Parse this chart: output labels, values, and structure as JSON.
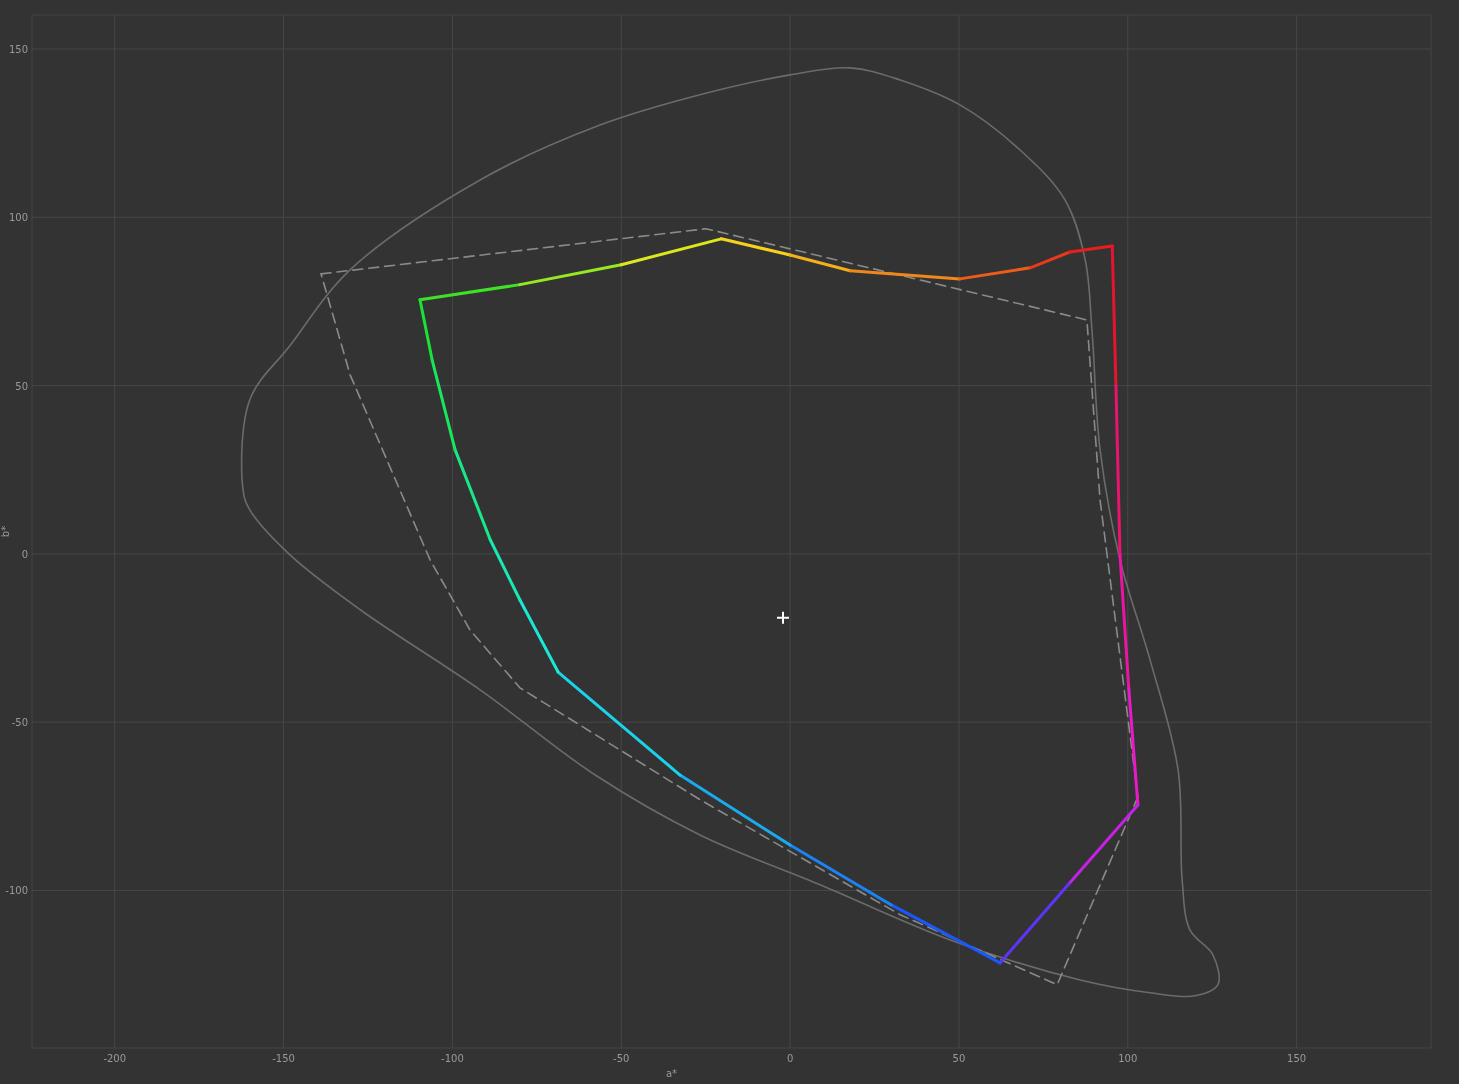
{
  "chart_data": {
    "type": "line",
    "xlabel": "a*",
    "ylabel": "b*",
    "xlim": [
      -224.5,
      189.8
    ],
    "ylim": [
      -146.8,
      160.1
    ],
    "xticks": [
      -200,
      -150,
      -100,
      -50,
      0,
      50,
      100,
      150
    ],
    "yticks": [
      -100,
      -50,
      0,
      50,
      100,
      150
    ],
    "grid": true,
    "series": [
      {
        "color": "#8a8a8a",
        "line_style": "dashed",
        "x": [
          -138.9,
          -24.9,
          87.9,
          91.8,
          103
        ],
        "values": [
          83.2,
          96.6,
          69.5,
          16,
          -72.2
        ]
      },
      {
        "color": "#8a8a8a",
        "line_style": "dashed",
        "x": [
          103,
          79.1,
          32.6,
          -26.7,
          -80,
          -94.8,
          -106.6,
          -130.3,
          -138.9
        ],
        "values": [
          -72.2,
          -128,
          -107.2,
          -73,
          -39.8,
          -22.6,
          -1.8,
          53.2,
          83.2
        ]
      },
      {
        "color": "#3fe226",
        "x": [
          -109.6,
          -80
        ],
        "values": [
          75.5,
          80
        ]
      },
      {
        "color": "#96e820",
        "x": [
          -80,
          -50
        ],
        "values": [
          80,
          85.9
        ]
      },
      {
        "color": "#dce81d",
        "x": [
          -50,
          -20.4
        ],
        "values": [
          85.9,
          93.6
        ]
      },
      {
        "color": "#f5d31c",
        "x": [
          -20.4,
          0
        ],
        "values": [
          93.6,
          88.8
        ]
      },
      {
        "color": "#f3b01b",
        "x": [
          0,
          17.8
        ],
        "values": [
          88.8,
          84.1
        ]
      },
      {
        "color": "#ef881a",
        "x": [
          17.8,
          50.3
        ],
        "values": [
          84.1,
          81.7
        ]
      },
      {
        "color": "#ec5d1a",
        "x": [
          50.3,
          71.1
        ],
        "values": [
          81.7,
          85
        ]
      },
      {
        "color": "#e9381b",
        "x": [
          71.1,
          82.9
        ],
        "values": [
          85,
          89.7
        ]
      },
      {
        "color": "#e81e1d",
        "x": [
          82.9,
          95.4
        ],
        "values": [
          89.7,
          91.5
        ]
      },
      {
        "color": "#e8142f",
        "x": [
          95.4,
          96.5
        ],
        "values": [
          91.5,
          50
        ]
      },
      {
        "color": "#e8146e",
        "x": [
          96.5,
          97.7
        ],
        "values": [
          50,
          -0.3
        ]
      },
      {
        "color": "#e816a2",
        "x": [
          97.7,
          100.3
        ],
        "values": [
          -0.3,
          -40
        ]
      },
      {
        "color": "#e819c8",
        "x": [
          100.3,
          103
        ],
        "values": [
          -40,
          -74.6
        ]
      },
      {
        "color": "#c421e4",
        "x": [
          103,
          82.6
        ],
        "values": [
          -74.6,
          -98
        ]
      },
      {
        "color": "#5e34f8",
        "x": [
          82.6,
          62.2
        ],
        "values": [
          -98,
          -121.5
        ]
      },
      {
        "color": "#1a58fb",
        "x": [
          62.2,
          30
        ],
        "values": [
          -121.5,
          -104.3
        ]
      },
      {
        "color": "#1a84f4",
        "x": [
          30,
          0
        ],
        "values": [
          -104.3,
          -86.5
        ]
      },
      {
        "color": "#1aaaee",
        "x": [
          0,
          -32.6
        ],
        "values": [
          -86.5,
          -65.7
        ]
      },
      {
        "color": "#1ad2ea",
        "x": [
          -32.6,
          -68.7
        ],
        "values": [
          -65.7,
          -35.1
        ]
      },
      {
        "color": "#1ae8d4",
        "x": [
          -68.7,
          -80
        ],
        "values": [
          -35.1,
          -13.7
        ]
      },
      {
        "color": "#1ae8b0",
        "x": [
          -80,
          -88.8
        ],
        "values": [
          -13.7,
          4.2
        ]
      },
      {
        "color": "#1ae888",
        "x": [
          -88.8,
          -99.2
        ],
        "values": [
          4.2,
          30.9
        ]
      },
      {
        "color": "#1ae65c",
        "x": [
          -99.2,
          -106
        ],
        "values": [
          30.9,
          57.6
        ]
      },
      {
        "color": "#1ae239",
        "x": [
          -106,
          -109.6
        ],
        "values": [
          57.6,
          75.5
        ]
      },
      {
        "type": "scatter",
        "marker": "cross",
        "color": "#ffffff",
        "x": [
          -2.1
        ],
        "values": [
          -19
        ]
      }
    ]
  }
}
